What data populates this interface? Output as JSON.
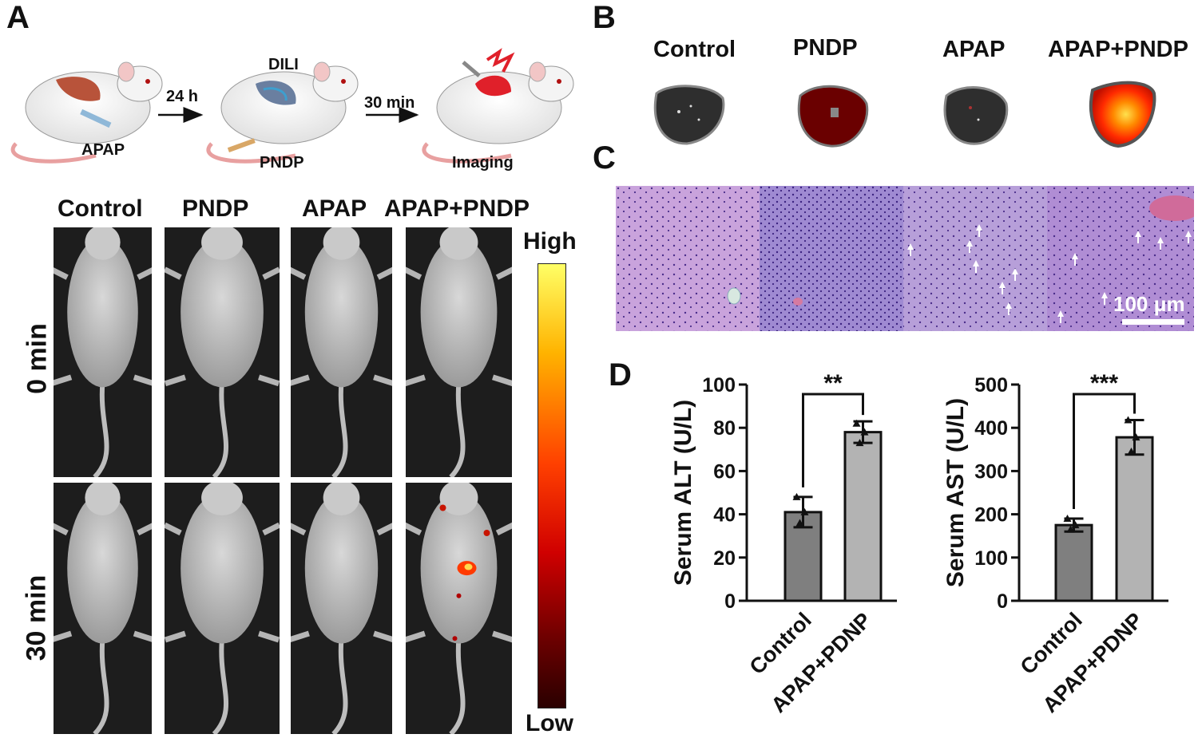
{
  "panels": {
    "a": "A",
    "b": "B",
    "c": "C",
    "d": "D"
  },
  "scheme": {
    "step1_drug": "APAP",
    "arrow1": "24 h",
    "step2_title": "DILI",
    "step2_probe": "PNDP",
    "arrow2": "30 min",
    "step3": "Imaging"
  },
  "imaging": {
    "groups": [
      "Control",
      "PNDP",
      "APAP",
      "APAP+PNDP"
    ],
    "times": [
      "0 min",
      "30 min"
    ],
    "colorbar_high": "High",
    "colorbar_low": "Low"
  },
  "ex_vivo": {
    "groups": [
      "Control",
      "PNDP",
      "APAP",
      "APAP+PNDP"
    ]
  },
  "histology": {
    "scale_label": "100 μm"
  },
  "colors": {
    "bar_control": "#7f7f7f",
    "bar_treated": "#b3b3b3",
    "heat_low": "#3b0000",
    "heat_mid": "#ff1a00",
    "heat_high": "#ffff66",
    "histo_bg": "#b48ccf"
  },
  "chart_data": [
    {
      "type": "bar",
      "categories": [
        "Control",
        "APAP+PDNP"
      ],
      "values": [
        41,
        78
      ],
      "errors": [
        7,
        5
      ],
      "points": [
        [
          48,
          41,
          36
        ],
        [
          82,
          78,
          73
        ]
      ],
      "ylabel": "Serum ALT (U/L)",
      "ylim": [
        0,
        100
      ],
      "yticks": [
        0,
        20,
        40,
        60,
        80,
        100
      ],
      "significance": "**"
    },
    {
      "type": "bar",
      "categories": [
        "Control",
        "APAP+PDNP"
      ],
      "values": [
        175,
        378
      ],
      "errors": [
        15,
        40
      ],
      "points": [
        [
          190,
          175,
          165
        ],
        [
          418,
          378,
          345
        ]
      ],
      "ylabel": "Serum AST (U/L)",
      "ylim": [
        0,
        500
      ],
      "yticks": [
        0,
        100,
        200,
        300,
        400,
        500
      ],
      "significance": "***"
    }
  ]
}
